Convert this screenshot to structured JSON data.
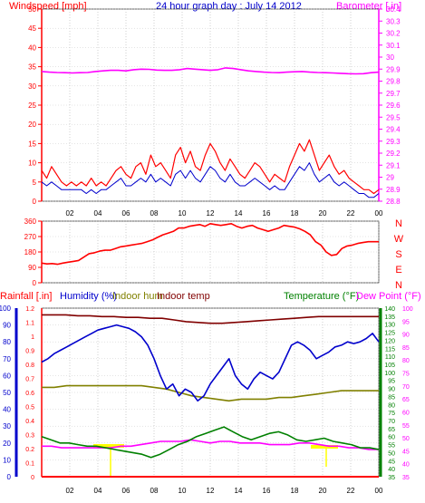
{
  "header": {
    "left_label": "Windspeed [mph]",
    "title": "24 hour graph day : July 14 2012",
    "right_label": "Barometer [.in]"
  },
  "colors": {
    "windspeed": "#ff0000",
    "wind_avg": "#0000cc",
    "barometer": "#ff00ff",
    "direction": "#ff0000",
    "humidity": "#0000cc",
    "indoor_hum": "#808000",
    "indoor_temp": "#800000",
    "temperature": "#008000",
    "dewpoint": "#ff00ff",
    "rain": "#ff0000",
    "night_marker": "#ffff00"
  },
  "chart_data": [
    {
      "type": "line",
      "x_ticks": [
        "02",
        "04",
        "06",
        "08",
        "10",
        "12",
        "14",
        "16",
        "18",
        "20",
        "22",
        "00"
      ],
      "y_ticks": [
        "0",
        "5",
        "10",
        "15",
        "20",
        "25",
        "30",
        "35",
        "40",
        "45",
        "50"
      ],
      "y2_ticks": [
        "28.8",
        "28.9",
        "29",
        "29.1",
        "29.2",
        "29.3",
        "29.4",
        "29.5",
        "29.6",
        "29.7",
        "29.8",
        "29.9",
        "30",
        "30.1",
        "30.2",
        "30.3",
        "30.4"
      ],
      "ylim": [
        0,
        50
      ],
      "y2lim": [
        28.8,
        30.4
      ],
      "series": [
        {
          "key": "wind_gust",
          "values": [
            8,
            6,
            9,
            7,
            5,
            4,
            5,
            4,
            5,
            4,
            6,
            4,
            5,
            4,
            6,
            8,
            9,
            7,
            6,
            9,
            10,
            7,
            12,
            9,
            10,
            8,
            6,
            12,
            14,
            10,
            13,
            9,
            8,
            12,
            15,
            13,
            10,
            8,
            11,
            9,
            7,
            6,
            8,
            10,
            9,
            7,
            5,
            7,
            6,
            5,
            9,
            12,
            15,
            13,
            16,
            12,
            8,
            10,
            12,
            9,
            7,
            8,
            6,
            5,
            4,
            3,
            3,
            2,
            3
          ]
        },
        {
          "key": "wind_avg",
          "values": [
            5,
            4,
            5,
            4,
            3,
            3,
            3,
            3,
            3,
            2,
            3,
            2,
            3,
            3,
            4,
            5,
            6,
            4,
            4,
            5,
            6,
            5,
            7,
            5,
            6,
            5,
            4,
            7,
            8,
            6,
            8,
            6,
            5,
            7,
            9,
            8,
            6,
            5,
            7,
            5,
            4,
            4,
            5,
            6,
            5,
            4,
            3,
            4,
            3,
            3,
            5,
            7,
            9,
            8,
            10,
            7,
            5,
            6,
            7,
            5,
            4,
            5,
            4,
            3,
            2,
            2,
            1,
            1,
            2
          ]
        },
        {
          "key": "barometer",
          "values": [
            29.88,
            29.875,
            29.872,
            29.87,
            29.868,
            29.87,
            29.872,
            29.88,
            29.885,
            29.89,
            29.89,
            29.885,
            29.895,
            29.9,
            29.898,
            29.892,
            29.89,
            29.89,
            29.895,
            29.905,
            29.9,
            29.895,
            29.89,
            29.895,
            29.91,
            29.905,
            29.895,
            29.885,
            29.88,
            29.875,
            29.872,
            29.87,
            29.875,
            29.878,
            29.88,
            29.875,
            29.872,
            29.87,
            29.868,
            29.865,
            29.862,
            29.86,
            29.862,
            29.87,
            29.875
          ]
        }
      ]
    },
    {
      "type": "line",
      "y_ticks": [
        "0",
        "90",
        "180",
        "270",
        "360"
      ],
      "compass": [
        "N",
        "W",
        "S",
        "E",
        "N"
      ],
      "ylim": [
        0,
        360
      ],
      "series": [
        {
          "key": "wind_direction",
          "values": [
            115,
            110,
            112,
            108,
            115,
            120,
            125,
            130,
            150,
            170,
            175,
            185,
            190,
            190,
            200,
            210,
            215,
            220,
            225,
            230,
            240,
            250,
            265,
            280,
            290,
            300,
            320,
            320,
            330,
            335,
            340,
            330,
            345,
            340,
            335,
            340,
            345,
            330,
            320,
            330,
            335,
            320,
            310,
            300,
            310,
            320,
            335,
            330,
            325,
            315,
            300,
            280,
            240,
            220,
            180,
            160,
            165,
            200,
            215,
            220,
            230,
            235,
            240,
            240,
            240
          ]
        }
      ]
    },
    {
      "type": "line",
      "axis_labels": {
        "rain": "Rainfall [.in]",
        "humidity": "Humidity (%)",
        "indoor_hum": "Indoor hum",
        "indoor_temp": "Indoor temp",
        "temperature": "Temperature (°F)",
        "dewpoint": "Dew Point (°F)"
      },
      "humidity_ticks": [
        "0",
        "10",
        "20",
        "30",
        "40",
        "50",
        "60",
        "70",
        "80",
        "90",
        "100"
      ],
      "rain_ticks": [
        "0",
        "0.1",
        "0.2",
        "0.3",
        "0.4",
        "0.5",
        "0.6",
        "0.7",
        "0.8",
        "0.9",
        "1",
        "1.1",
        "1.2"
      ],
      "temp_ticks": [
        "35",
        "40",
        "45",
        "50",
        "55",
        "60",
        "65",
        "70",
        "75",
        "80",
        "85",
        "90",
        "95",
        "100",
        "105",
        "110",
        "115",
        "120",
        "125",
        "130",
        "135",
        "140"
      ],
      "dewpoint_ticks": [
        "35",
        "40",
        "45",
        "50",
        "55",
        "60",
        "65",
        "70",
        "75",
        "80",
        "85",
        "90",
        "95",
        "100"
      ],
      "humidity_lim": [
        0,
        100
      ],
      "temp_lim": [
        35,
        140
      ],
      "series": [
        {
          "key": "humidity",
          "values": [
            68,
            70,
            73,
            75,
            77,
            79,
            81,
            83,
            85,
            87,
            88,
            89,
            90,
            89,
            88,
            86,
            83,
            78,
            70,
            60,
            52,
            55,
            48,
            52,
            50,
            45,
            48,
            55,
            60,
            65,
            70,
            60,
            55,
            52,
            58,
            62,
            60,
            58,
            62,
            70,
            78,
            80,
            78,
            75,
            70,
            72,
            74,
            77,
            78,
            80,
            79,
            80,
            82,
            85,
            80
          ]
        },
        {
          "key": "indoor_temp",
          "values": [
            96,
            96,
            96,
            95.5,
            95.5,
            95,
            95,
            94.5,
            94.5,
            94,
            94,
            93,
            92,
            91.5,
            91,
            91,
            91.5,
            92,
            92.5,
            93,
            93.5,
            94,
            94.5,
            95,
            95,
            95,
            95,
            95,
            95
          ]
        },
        {
          "key": "indoor_hum",
          "values": [
            53,
            53,
            54,
            54,
            54,
            54,
            54,
            54,
            54,
            53,
            52,
            50,
            48,
            47,
            46,
            45,
            46,
            46,
            46,
            47,
            47,
            48,
            49,
            50,
            51,
            51,
            51,
            51
          ]
        },
        {
          "key": "temperature",
          "values": [
            60,
            58,
            56,
            56,
            55,
            54,
            54,
            53,
            52,
            51,
            50,
            49,
            47,
            49,
            52,
            55,
            57,
            60,
            62,
            64,
            66,
            63,
            60,
            58,
            60,
            62,
            63,
            61,
            58,
            57,
            58,
            59,
            57,
            56,
            55,
            53,
            53,
            52
          ]
        },
        {
          "key": "dewpoint",
          "values": [
            54,
            54,
            53,
            53,
            53,
            53,
            53,
            53,
            54,
            54,
            55,
            56,
            57,
            57,
            57,
            58,
            57,
            56,
            57,
            57,
            56,
            56,
            56,
            55,
            55,
            55,
            56,
            56,
            55,
            54,
            54,
            53,
            53,
            52,
            52
          ]
        }
      ]
    }
  ]
}
